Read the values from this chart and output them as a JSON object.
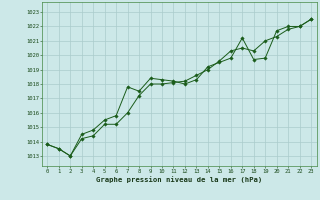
{
  "title": "Graphe pression niveau de la mer (hPa)",
  "background_color": "#cce8e8",
  "grid_color": "#aacccc",
  "line_color": "#1a5c1a",
  "marker_color": "#1a5c1a",
  "xlim": [
    -0.5,
    23.5
  ],
  "ylim": [
    1012.3,
    1023.7
  ],
  "yticks": [
    1013,
    1014,
    1015,
    1016,
    1017,
    1018,
    1019,
    1020,
    1021,
    1022,
    1023
  ],
  "xticks": [
    0,
    1,
    2,
    3,
    4,
    5,
    6,
    7,
    8,
    9,
    10,
    11,
    12,
    13,
    14,
    15,
    16,
    17,
    18,
    19,
    20,
    21,
    22,
    23
  ],
  "series1": {
    "x": [
      0,
      1,
      2,
      3,
      4,
      5,
      6,
      7,
      8,
      9,
      10,
      11,
      12,
      13,
      14,
      15,
      16,
      17,
      18,
      19,
      20,
      21,
      22,
      23
    ],
    "y": [
      1013.8,
      1013.5,
      1013.0,
      1014.5,
      1014.8,
      1015.5,
      1015.8,
      1017.8,
      1017.5,
      1018.4,
      1018.3,
      1018.2,
      1018.0,
      1018.3,
      1019.2,
      1019.5,
      1019.8,
      1021.2,
      1019.7,
      1019.8,
      1021.7,
      1022.0,
      1022.0,
      1022.5
    ]
  },
  "series2": {
    "x": [
      0,
      1,
      2,
      3,
      4,
      5,
      6,
      7,
      8,
      9,
      10,
      11,
      12,
      13,
      14,
      15,
      16,
      17,
      18,
      19,
      20,
      21,
      22,
      23
    ],
    "y": [
      1013.8,
      1013.5,
      1013.0,
      1014.2,
      1014.4,
      1015.2,
      1015.2,
      1016.0,
      1017.2,
      1018.0,
      1018.0,
      1018.1,
      1018.2,
      1018.6,
      1019.0,
      1019.6,
      1020.3,
      1020.5,
      1020.3,
      1021.0,
      1021.3,
      1021.8,
      1022.0,
      1022.5
    ]
  }
}
